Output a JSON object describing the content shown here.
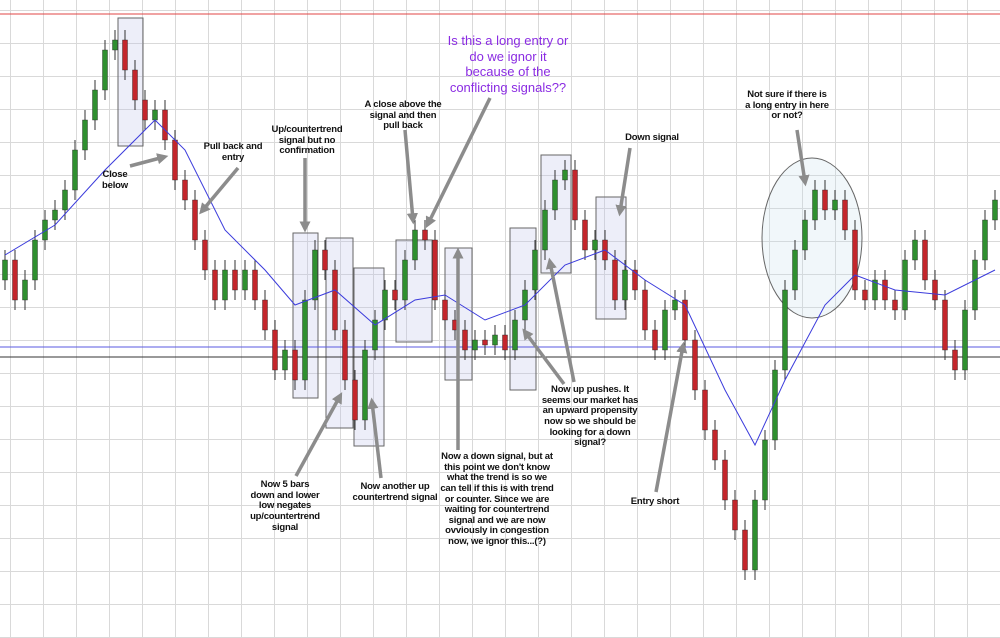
{
  "chart_data": {
    "type": "candlestick",
    "open": [
      360,
      380,
      340,
      360,
      400,
      420,
      430,
      450,
      490,
      520,
      550,
      590,
      600,
      570,
      540,
      520,
      530,
      500,
      460,
      440,
      400,
      370,
      340,
      370,
      350,
      370,
      340,
      310,
      270,
      290,
      260,
      340,
      390,
      370,
      310,
      260,
      220,
      290,
      320,
      350,
      340,
      380,
      410,
      400,
      340,
      320,
      310,
      290,
      300,
      295,
      305,
      290,
      320,
      350,
      390,
      430,
      460,
      470,
      420,
      390,
      400,
      380,
      340,
      370,
      350,
      310,
      290,
      330,
      340,
      300,
      250,
      210,
      180,
      140,
      110,
      70,
      140,
      200,
      270,
      350,
      390,
      420,
      450,
      430,
      440,
      410,
      350,
      340,
      360,
      340,
      330,
      380,
      400,
      360,
      340,
      290,
      270,
      330,
      380,
      420
    ],
    "high": [
      390,
      390,
      370,
      410,
      430,
      440,
      460,
      500,
      530,
      560,
      600,
      610,
      610,
      580,
      550,
      540,
      540,
      510,
      470,
      450,
      410,
      380,
      380,
      380,
      380,
      380,
      350,
      320,
      300,
      300,
      350,
      400,
      400,
      380,
      320,
      270,
      300,
      330,
      360,
      360,
      390,
      420,
      420,
      410,
      350,
      330,
      320,
      310,
      310,
      315,
      315,
      330,
      360,
      400,
      440,
      470,
      480,
      480,
      430,
      410,
      410,
      390,
      380,
      380,
      360,
      320,
      340,
      350,
      350,
      310,
      260,
      220,
      190,
      150,
      120,
      150,
      210,
      280,
      360,
      400,
      430,
      460,
      460,
      450,
      450,
      420,
      360,
      370,
      370,
      350,
      390,
      410,
      410,
      370,
      350,
      300,
      340,
      390,
      430,
      450
    ],
    "low": [
      350,
      330,
      330,
      350,
      390,
      410,
      420,
      440,
      480,
      510,
      540,
      580,
      560,
      530,
      510,
      510,
      490,
      450,
      430,
      390,
      360,
      330,
      330,
      340,
      340,
      330,
      300,
      260,
      260,
      250,
      250,
      330,
      360,
      300,
      250,
      210,
      210,
      280,
      310,
      330,
      330,
      370,
      390,
      330,
      310,
      300,
      280,
      280,
      285,
      285,
      280,
      280,
      310,
      340,
      380,
      420,
      450,
      410,
      380,
      380,
      370,
      330,
      330,
      340,
      300,
      280,
      280,
      320,
      290,
      240,
      200,
      170,
      130,
      100,
      60,
      60,
      130,
      190,
      260,
      340,
      380,
      410,
      420,
      420,
      400,
      340,
      330,
      330,
      330,
      320,
      320,
      370,
      350,
      330,
      280,
      260,
      260,
      320,
      370,
      410
    ],
    "close": [
      380,
      340,
      360,
      400,
      420,
      430,
      450,
      490,
      520,
      550,
      590,
      600,
      570,
      540,
      520,
      530,
      500,
      460,
      440,
      400,
      370,
      340,
      370,
      350,
      370,
      340,
      310,
      270,
      290,
      260,
      340,
      390,
      370,
      310,
      260,
      220,
      290,
      320,
      350,
      340,
      380,
      410,
      400,
      340,
      320,
      310,
      290,
      300,
      295,
      305,
      290,
      320,
      350,
      390,
      430,
      460,
      470,
      420,
      390,
      400,
      380,
      340,
      370,
      350,
      310,
      290,
      330,
      340,
      300,
      250,
      210,
      180,
      140,
      110,
      70,
      140,
      200,
      270,
      350,
      390,
      420,
      450,
      430,
      440,
      410,
      350,
      340,
      360,
      340,
      330,
      380,
      400,
      360,
      340,
      290,
      270,
      330,
      380,
      420,
      440
    ],
    "up_color": "#2f8f2f",
    "down_color": "#c3262c",
    "ylim": [
      0,
      640
    ],
    "moving_average": {
      "color": "#3b3bdc",
      "x": [
        0,
        5,
        10,
        15,
        18,
        22,
        26,
        29,
        33,
        37,
        41,
        44,
        48,
        52,
        56,
        60,
        64,
        68,
        72,
        75,
        78,
        82,
        85,
        89,
        94,
        99
      ],
      "values": [
        385,
        415,
        470,
        520,
        490,
        410,
        370,
        335,
        350,
        315,
        340,
        345,
        320,
        335,
        375,
        390,
        360,
        335,
        250,
        195,
        260,
        335,
        365,
        350,
        345,
        370
      ]
    },
    "reference_lines": [
      {
        "value": 626,
        "color": "#e04545"
      },
      {
        "value": 293,
        "color": "#5a5ae0"
      },
      {
        "value": 283,
        "color": "#333333"
      }
    ],
    "annotations": [
      {
        "text": "Close\nbelow"
      },
      {
        "text": "Pull back and\nentry"
      },
      {
        "text": "Up/countertrend\nsignal but no\nconfirmation"
      },
      {
        "text": "A close above the\nsignal and then\npull back"
      },
      {
        "text": "Is this a long entry or\ndo we ignor it\nbecause of the\nconflicting signals??"
      },
      {
        "text": "Down signal"
      },
      {
        "text": "Not sure if there is\na long entry in here\nor not?"
      },
      {
        "text": "Now 5 bars\ndown and lower\nlow negates\nup/countertrend\nsignal"
      },
      {
        "text": "Now another up\ncountertrend signal"
      },
      {
        "text": "Now a down signal, but at\nthis point we don't know\nwhat the trend is so we\ncan tell if this is with trend\nor counter. Since we are\nwaiting for countertrend\nsignal and we are now\novviously in congestion\nnow, we ignor this...(?)"
      },
      {
        "text": "Now up pushes. It\nseems our market has\nan upward propensity\nnow so we should be\nlooking for a down\nsignal?"
      },
      {
        "text": "Entry short"
      }
    ]
  }
}
